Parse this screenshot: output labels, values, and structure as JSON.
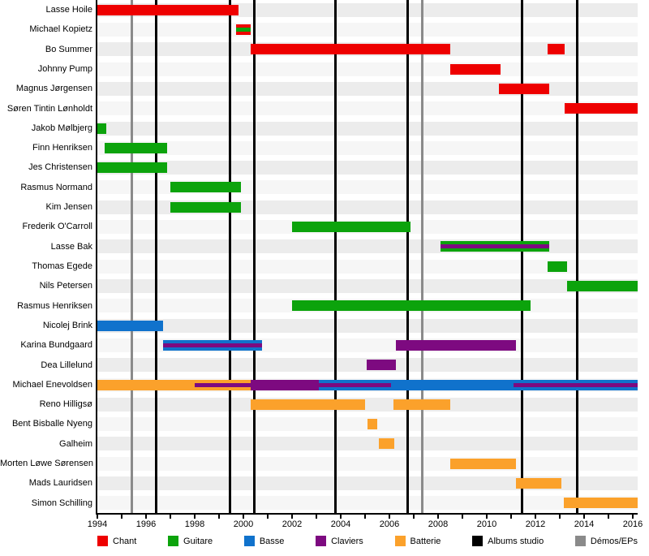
{
  "chart_data": {
    "type": "bar",
    "subtype": "membership-timeline-gantt",
    "title": "",
    "xlabel": "",
    "ylabel": "",
    "grid": false,
    "legend_position": "bottom",
    "x_axis": {
      "range": [
        1994,
        2016.2
      ],
      "tick_step": 1,
      "label_step": 2,
      "tick_labels": [
        "1994",
        "1996",
        "1998",
        "2000",
        "2002",
        "2004",
        "2006",
        "2008",
        "2010",
        "2012",
        "2014",
        "2016"
      ]
    },
    "colors": {
      "chant": "#EE0000",
      "guitare": "#0CA30C",
      "basse": "#1072CC",
      "claviers": "#7D0A80",
      "batterie": "#FBA12B",
      "album": "#000000",
      "demo": "#8A8A8A",
      "band_even": "#ECECEC",
      "band_odd": "#F6F6F6"
    },
    "legend": [
      {
        "label": "Chant",
        "role": "chant"
      },
      {
        "label": "Guitare",
        "role": "guitare"
      },
      {
        "label": "Basse",
        "role": "basse"
      },
      {
        "label": "Claviers",
        "role": "claviers"
      },
      {
        "label": "Batterie",
        "role": "batterie"
      },
      {
        "label": "Albums studio",
        "role": "album"
      },
      {
        "label": "Démos/EPs",
        "role": "demo"
      }
    ],
    "event_lines": [
      {
        "type": "demo",
        "year": 1995.42
      },
      {
        "type": "album",
        "year": 1996.4
      },
      {
        "type": "album",
        "year": 1999.45
      },
      {
        "type": "album",
        "year": 2000.45
      },
      {
        "type": "album",
        "year": 2003.78
      },
      {
        "type": "album",
        "year": 2006.76
      },
      {
        "type": "demo",
        "year": 2007.36
      },
      {
        "type": "album",
        "year": 2011.44
      },
      {
        "type": "album",
        "year": 2013.72
      }
    ],
    "rows": [
      {
        "name": "Lasse Hoile",
        "bars": [
          {
            "role": "chant",
            "start": 1994.0,
            "end": 1999.8
          }
        ]
      },
      {
        "name": "Michael Kopietz",
        "bars": [
          {
            "role": "chant",
            "start": 1999.7,
            "end": 2000.3,
            "stripes": [
              {
                "role": "guitare",
                "start": 1999.7,
                "end": 2000.3
              }
            ]
          }
        ]
      },
      {
        "name": "Bo Summer",
        "bars": [
          {
            "role": "chant",
            "start": 2000.3,
            "end": 2008.5
          },
          {
            "role": "chant",
            "start": 2012.5,
            "end": 2013.2
          }
        ]
      },
      {
        "name": "Johnny Pump",
        "bars": [
          {
            "role": "chant",
            "start": 2008.5,
            "end": 2010.55
          }
        ]
      },
      {
        "name": "Magnus Jørgensen",
        "bars": [
          {
            "role": "chant",
            "start": 2010.5,
            "end": 2012.55
          }
        ]
      },
      {
        "name": "Søren Tintin Lønholdt",
        "bars": [
          {
            "role": "chant",
            "start": 2013.2,
            "end": 2016.2
          }
        ]
      },
      {
        "name": "Jakob Mølbjerg",
        "bars": [
          {
            "role": "guitare",
            "start": 1994.0,
            "end": 1994.35
          }
        ]
      },
      {
        "name": "Finn Henriksen",
        "bars": [
          {
            "role": "guitare",
            "start": 1994.3,
            "end": 1996.85
          }
        ]
      },
      {
        "name": "Jes Christensen",
        "bars": [
          {
            "role": "guitare",
            "start": 1994.0,
            "end": 1996.85
          }
        ]
      },
      {
        "name": "Rasmus Normand",
        "bars": [
          {
            "role": "guitare",
            "start": 1997.0,
            "end": 1999.9
          }
        ]
      },
      {
        "name": "Kim Jensen",
        "bars": [
          {
            "role": "guitare",
            "start": 1997.0,
            "end": 1999.9
          }
        ]
      },
      {
        "name": "Frederik O'Carroll",
        "bars": [
          {
            "role": "guitare",
            "start": 2002.0,
            "end": 2006.85
          }
        ]
      },
      {
        "name": "Lasse Bak",
        "bars": [
          {
            "role": "guitare",
            "start": 2008.1,
            "end": 2012.55,
            "stripes": [
              {
                "role": "claviers",
                "start": 2008.1,
                "end": 2012.55
              }
            ]
          }
        ]
      },
      {
        "name": "Thomas Egede",
        "bars": [
          {
            "role": "guitare",
            "start": 2012.5,
            "end": 2013.3
          }
        ]
      },
      {
        "name": "Nils Petersen",
        "bars": [
          {
            "role": "guitare",
            "start": 2013.3,
            "end": 2016.2
          }
        ]
      },
      {
        "name": "Rasmus Henriksen",
        "bars": [
          {
            "role": "guitare",
            "start": 2002.0,
            "end": 2011.8
          }
        ]
      },
      {
        "name": "Nicolej Brink",
        "bars": [
          {
            "role": "basse",
            "start": 1994.0,
            "end": 1996.7
          }
        ]
      },
      {
        "name": "Karina Bundgaard",
        "bars": [
          {
            "role": "basse",
            "start": 1996.7,
            "end": 2000.75,
            "stripes": [
              {
                "role": "claviers",
                "start": 1996.7,
                "end": 2000.75
              }
            ]
          },
          {
            "role": "claviers",
            "start": 2006.25,
            "end": 2011.2
          }
        ]
      },
      {
        "name": "Dea Lillelund",
        "bars": [
          {
            "role": "claviers",
            "start": 2005.05,
            "end": 2006.25
          }
        ]
      },
      {
        "name": "Michael Enevoldsen",
        "bars": [
          {
            "role": "batterie",
            "start": 1994.0,
            "end": 2000.3,
            "stripes": [
              {
                "role": "claviers",
                "start": 1998.0,
                "end": 2000.3
              }
            ]
          },
          {
            "role": "claviers",
            "start": 2000.3,
            "end": 2003.1
          },
          {
            "role": "basse",
            "start": 2003.1,
            "end": 2016.2,
            "stripes": [
              {
                "role": "claviers",
                "start": 2003.1,
                "end": 2006.05
              },
              {
                "role": "claviers",
                "start": 2011.1,
                "end": 2016.2
              }
            ]
          }
        ]
      },
      {
        "name": "Reno Hilligsø",
        "bars": [
          {
            "role": "batterie",
            "start": 2000.3,
            "end": 2005.0
          },
          {
            "role": "batterie",
            "start": 2006.15,
            "end": 2008.5
          }
        ]
      },
      {
        "name": "Bent Bisballe Nyeng",
        "bars": [
          {
            "role": "batterie",
            "start": 2005.1,
            "end": 2005.5
          }
        ]
      },
      {
        "name": "Galheim",
        "bars": [
          {
            "role": "batterie",
            "start": 2005.55,
            "end": 2006.2
          }
        ]
      },
      {
        "name": "Morten Løwe Sørensen",
        "bars": [
          {
            "role": "batterie",
            "start": 2008.5,
            "end": 2011.2
          }
        ]
      },
      {
        "name": "Mads Lauridsen",
        "bars": [
          {
            "role": "batterie",
            "start": 2011.2,
            "end": 2013.05
          }
        ]
      },
      {
        "name": "Simon Schilling",
        "bars": [
          {
            "role": "batterie",
            "start": 2013.15,
            "end": 2016.2
          }
        ]
      }
    ]
  }
}
